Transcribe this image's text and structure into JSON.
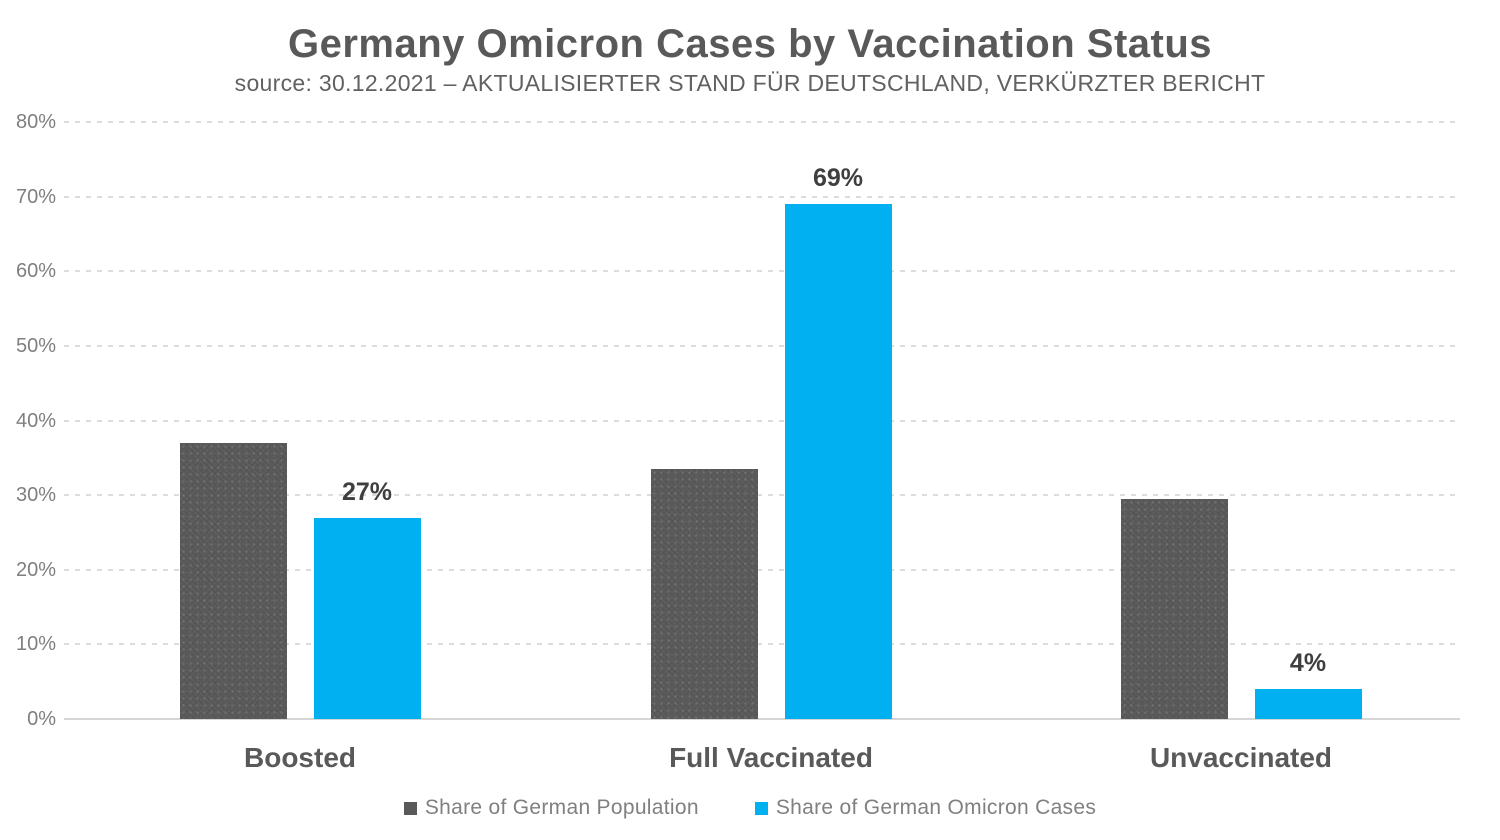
{
  "header": {
    "title": "Germany Omicron Cases by Vaccination Status",
    "subtitle": "source: 30.12.2021 – AKTUALISIERTER STAND FÜR DEUTSCHLAND, VERKÜRZTER BERICHT"
  },
  "chart_data": {
    "type": "bar",
    "title": "Germany Omicron Cases by Vaccination Status",
    "subtitle": "source: 30.12.2021 – AKTUALISIERTER STAND FÜR DEUTSCHLAND, VERKÜRZTER BERICHT",
    "categories": [
      "Boosted",
      "Full Vaccinated",
      "Unvaccinated"
    ],
    "series": [
      {
        "name": "Share of German Population",
        "color": "#595959",
        "pattern": "dotted",
        "values": [
          37,
          33.5,
          29.5
        ],
        "data_labels": [
          null,
          null,
          null
        ]
      },
      {
        "name": "Share of German Omicron Cases",
        "color": "#00b0f0",
        "pattern": "solid",
        "values": [
          27,
          69,
          4
        ],
        "data_labels": [
          "27%",
          "69%",
          "4%"
        ]
      }
    ],
    "xlabel": "",
    "ylabel": "",
    "ylim": [
      0,
      80
    ],
    "ytick_step": 10,
    "ytick_labels": [
      "0%",
      "10%",
      "20%",
      "30%",
      "40%",
      "50%",
      "60%",
      "70%",
      "80%"
    ],
    "grid": "horizontal-dashed",
    "legend_position": "bottom"
  },
  "colors": {
    "bar_population": "#595959",
    "bar_omicron": "#00b0f0",
    "gridline": "#d9d9d9",
    "axis_line": "#d6d6d6",
    "title_text": "#595959",
    "tick_text": "#7f7f7f",
    "legend_text": "#808080",
    "data_label_text": "#3f3f3f"
  }
}
